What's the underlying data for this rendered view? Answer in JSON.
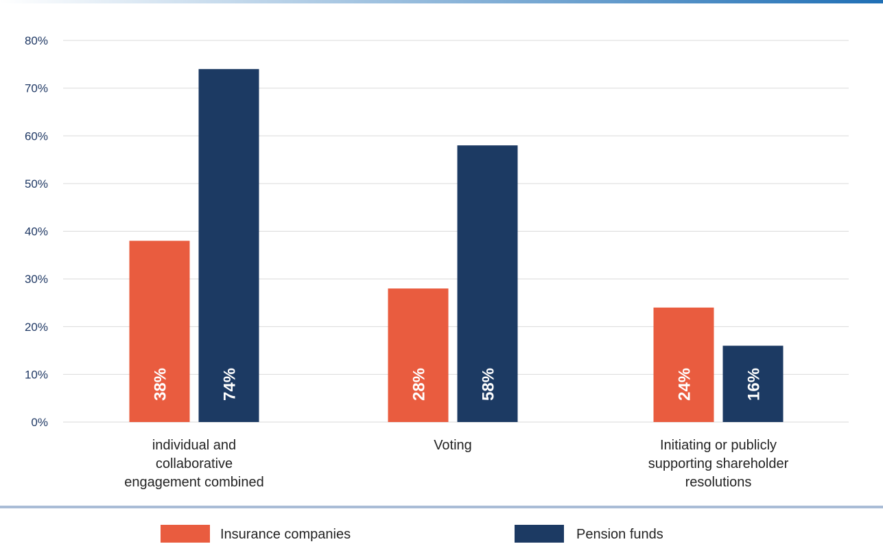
{
  "colors": {
    "insurance": "#e95c3f",
    "pension": "#1c3a63",
    "grid": "#d9d9d9",
    "top_bar_start": "#ffffff",
    "top_bar_end": "#1f6fb5",
    "separator": "#a9bcd6"
  },
  "chart_data": {
    "type": "bar",
    "categories": [
      [
        "individual and",
        "collaborative",
        "engagement combined"
      ],
      [
        "Voting"
      ],
      [
        "Initiating or publicly",
        "supporting shareholder",
        "resolutions"
      ]
    ],
    "series": [
      {
        "name": "Insurance companies",
        "values": [
          38,
          28,
          24
        ],
        "labels": [
          "38%",
          "28%",
          "24%"
        ]
      },
      {
        "name": "Pension funds",
        "values": [
          74,
          58,
          16
        ],
        "labels": [
          "74%",
          "58%",
          "16%"
        ]
      }
    ],
    "ylim": [
      0,
      80
    ],
    "yticks": [
      0,
      10,
      20,
      30,
      40,
      50,
      60,
      70,
      80
    ],
    "ytick_labels": [
      "0%",
      "10%",
      "20%",
      "30%",
      "40%",
      "50%",
      "60%",
      "70%",
      "80%"
    ],
    "grid": true,
    "legend_position": "bottom"
  }
}
